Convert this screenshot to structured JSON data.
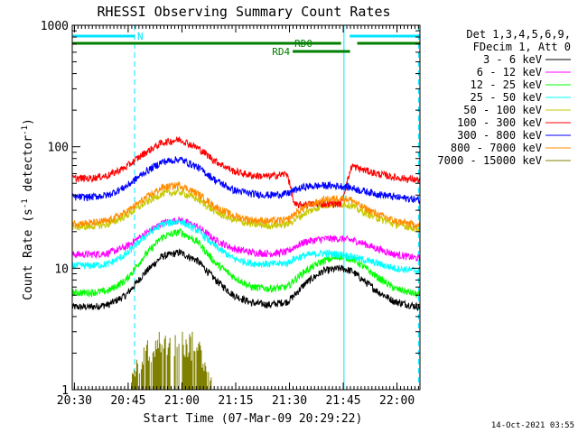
{
  "chart_data": {
    "type": "line",
    "title": "RHESSI Observing Summary Count Rates",
    "xlabel": "Start Time (07-Mar-09 20:29:22)",
    "ylabel_parts": [
      "Count Rate (s",
      "-1",
      " detector",
      "-1",
      ")"
    ],
    "x_unit": "minutes after 20:29:22",
    "xlim": [
      0,
      97
    ],
    "ylim": [
      1,
      1000
    ],
    "yscale": "log",
    "grid": false,
    "x_ticks": [
      {
        "t": 0.6,
        "label": "20:30"
      },
      {
        "t": 15.6,
        "label": "20:45"
      },
      {
        "t": 30.6,
        "label": "21:00"
      },
      {
        "t": 45.6,
        "label": "21:15"
      },
      {
        "t": 60.6,
        "label": "21:30"
      },
      {
        "t": 75.6,
        "label": "21:45"
      },
      {
        "t": 90.6,
        "label": "22:00"
      }
    ],
    "y_ticks": [
      {
        "v": 1,
        "label": "1"
      },
      {
        "v": 10,
        "label": "10"
      },
      {
        "v": 100,
        "label": "100"
      },
      {
        "v": 1000,
        "label": "1000"
      }
    ],
    "legend_header": [
      "Det 1,3,4,5,6,9,",
      "FDecim 1, Att 0"
    ],
    "legend_position": "right",
    "footer": "14-Oct-2021 03:55",
    "flags": [
      {
        "name": "N",
        "color": "#00e5ff",
        "row": 1,
        "segments": [
          [
            0,
            17.4
          ]
        ]
      },
      {
        "name": "",
        "color": "#00e5ff",
        "row": 1,
        "segments": [
          [
            77.4,
            97
          ]
        ]
      },
      {
        "name": "RD0",
        "color": "#008000",
        "row": 2,
        "segments": [
          [
            0,
            75.0
          ],
          [
            79.5,
            97
          ]
        ]
      },
      {
        "name": "RD4",
        "color": "#008000",
        "row": 3,
        "segments": [
          [
            61.5,
            77.5
          ]
        ]
      }
    ],
    "vertical_markers": [
      {
        "t": 0,
        "style": "solid",
        "color": "#00e5ff"
      },
      {
        "t": 17.4,
        "style": "dashed",
        "color": "#00e5ff"
      },
      {
        "t": 75.8,
        "style": "solid",
        "color": "#00e5ff"
      },
      {
        "t": 96.6,
        "style": "dashed",
        "color": "#00e5ff"
      }
    ],
    "time_knots": [
      0,
      5,
      10,
      15,
      20,
      25,
      30,
      35,
      40,
      45,
      50,
      55,
      60,
      62,
      65,
      70,
      75,
      78,
      80,
      85,
      90,
      97
    ],
    "series": [
      {
        "name": "3 - 6 keV",
        "color": "#000000",
        "values": [
          4.8,
          4.8,
          5.0,
          6.0,
          9.0,
          12.5,
          13.5,
          11.5,
          8.0,
          6.0,
          5.2,
          5.0,
          5.3,
          6.0,
          7.5,
          9.5,
          10.0,
          9.5,
          8.5,
          6.5,
          5.3,
          4.8
        ]
      },
      {
        "name": "6 - 12 keV",
        "color": "#ff00ff",
        "values": [
          13.0,
          13.0,
          13.3,
          15.0,
          19.0,
          23.5,
          25.0,
          22.0,
          17.0,
          14.5,
          13.5,
          13.2,
          13.6,
          15.0,
          16.5,
          17.5,
          17.5,
          17.0,
          16.5,
          14.5,
          13.0,
          12.0
        ]
      },
      {
        "name": "12 - 25 keV",
        "color": "#00ff00",
        "values": [
          6.3,
          6.3,
          6.5,
          8.0,
          12.5,
          18.0,
          20.0,
          16.5,
          11.0,
          8.5,
          7.0,
          6.8,
          7.0,
          8.0,
          9.5,
          11.5,
          12.5,
          12.0,
          11.0,
          8.5,
          6.8,
          6.0
        ]
      },
      {
        "name": "25 - 50 keV",
        "color": "#00ffff",
        "values": [
          10.5,
          10.5,
          10.8,
          13.0,
          18.0,
          23.0,
          24.5,
          20.5,
          15.0,
          12.0,
          11.0,
          10.8,
          11.0,
          12.0,
          12.8,
          13.3,
          13.0,
          12.5,
          12.0,
          11.0,
          10.0,
          9.5
        ]
      },
      {
        "name": "50 - 100 keV",
        "color": "#c8c800",
        "values": [
          22.0,
          22.0,
          23.0,
          27.0,
          34.0,
          41.0,
          42.5,
          37.0,
          29.0,
          25.0,
          23.0,
          22.5,
          23.0,
          25.0,
          28.5,
          33.0,
          34.0,
          33.0,
          30.0,
          26.0,
          23.0,
          21.0
        ]
      },
      {
        "name": "100 - 300 keV",
        "color": "#ff0000",
        "values": [
          55.0,
          55.0,
          58.0,
          68.0,
          88.0,
          108.0,
          115.0,
          98.0,
          76.0,
          63.0,
          58.0,
          57.0,
          60.0,
          33.0,
          33.5,
          34.0,
          34.0,
          70.0,
          66.0,
          60.0,
          56.0,
          53.0
        ]
      },
      {
        "name": "300 - 800 keV",
        "color": "#0000ff",
        "values": [
          38.5,
          38.5,
          40.0,
          47.0,
          61.0,
          75.0,
          79.0,
          68.0,
          53.0,
          44.0,
          41.0,
          40.0,
          41.0,
          44.0,
          47.0,
          48.0,
          47.5,
          46.0,
          44.0,
          41.0,
          38.5,
          36.5
        ]
      },
      {
        "name": "800 - 7000 keV",
        "color": "#ff8c00",
        "values": [
          23.5,
          23.5,
          24.5,
          29.0,
          37.0,
          46.0,
          48.5,
          41.0,
          32.0,
          27.0,
          25.0,
          24.5,
          25.0,
          28.0,
          32.0,
          36.5,
          38.0,
          36.5,
          33.0,
          28.0,
          24.5,
          22.5
        ]
      },
      {
        "name": "7000 - 15000 keV",
        "color": "#808000",
        "values": [
          1,
          1,
          1,
          1,
          2.0,
          2.5,
          2.5,
          2.3,
          1,
          1,
          1,
          1,
          1,
          1,
          1,
          1,
          1,
          1,
          1,
          1,
          1,
          1
        ],
        "note_top_band": true
      }
    ]
  }
}
